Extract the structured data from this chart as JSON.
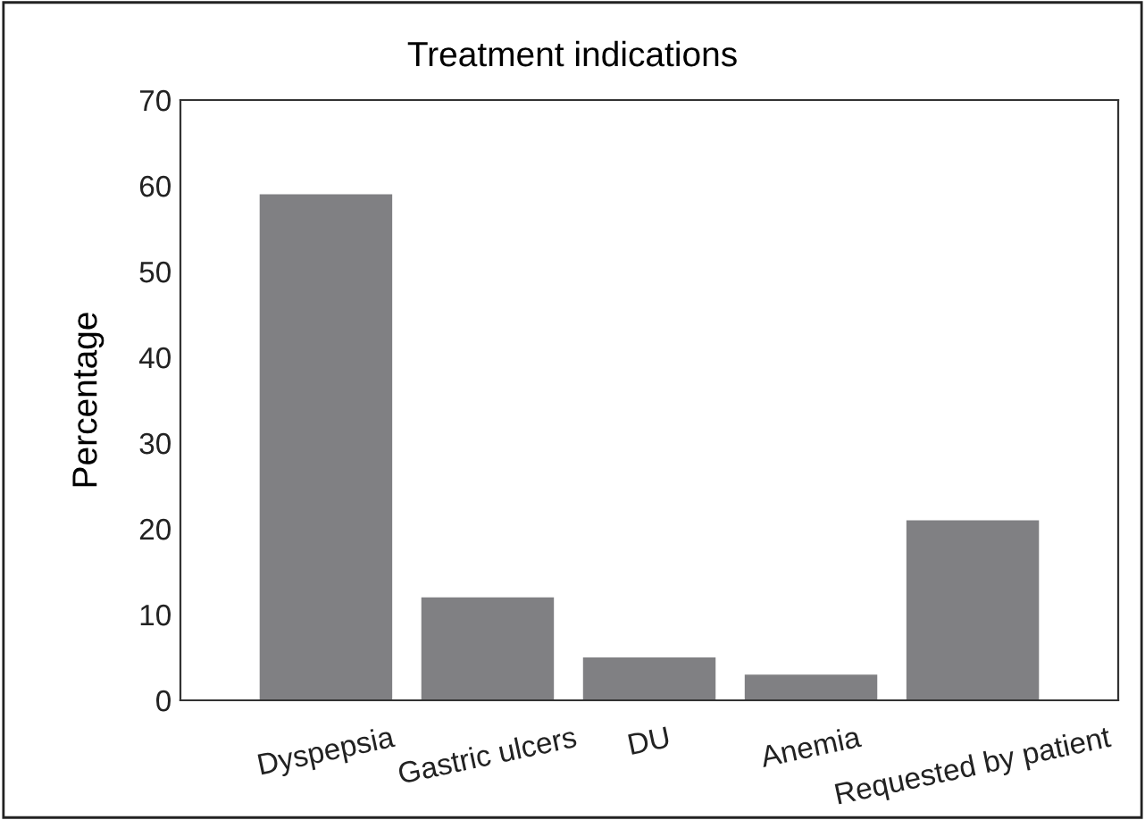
{
  "chart_data": {
    "type": "bar",
    "title": "Treatment indications",
    "ylabel": "Percentage",
    "categories": [
      "Dyspepsia",
      "Gastric ulcers",
      "DU",
      "Anemia",
      "Requested by patient"
    ],
    "values": [
      59,
      12,
      5,
      3,
      21
    ],
    "color": "#808083",
    "ylim": [
      0,
      70
    ],
    "yticks": [
      0,
      10,
      20,
      30,
      40,
      50,
      60,
      70
    ],
    "grid": false,
    "legend": false
  }
}
